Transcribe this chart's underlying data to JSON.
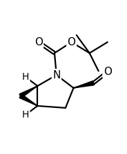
{
  "background": "#ffffff",
  "line_color": "#000000",
  "line_width": 1.6,
  "font_size_atom": 11,
  "xlim": [
    -2.8,
    3.5
  ],
  "ylim": [
    -3.2,
    3.0
  ]
}
